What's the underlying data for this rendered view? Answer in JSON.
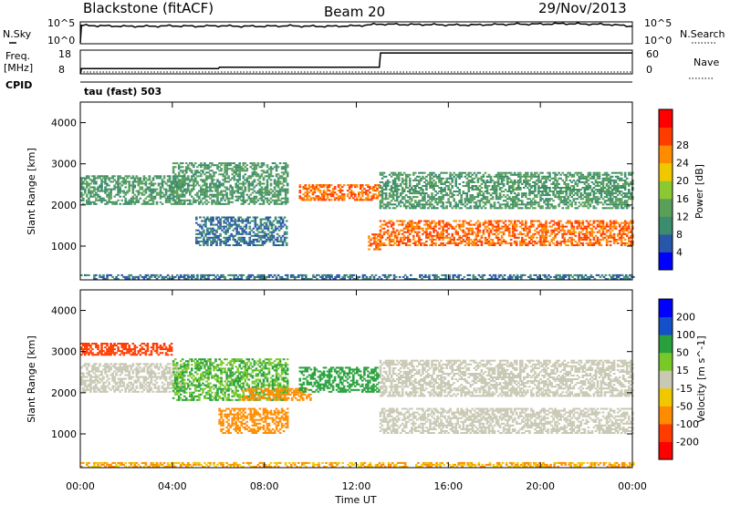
{
  "header": {
    "station": "Blackstone (fitACF)",
    "beam": "Beam 20",
    "date": "29/Nov/2013"
  },
  "noise_panel": {
    "left_label": "N.Sky",
    "right_label": "N.Search",
    "left_ticks": [
      "10^5",
      "10^0"
    ],
    "right_ticks": [
      "10^5",
      "10^0"
    ]
  },
  "freq_panel": {
    "left_label_top": "Freq.",
    "left_label_units": "[MHz]",
    "cpid_label": "CPID",
    "right_label": "Nave",
    "left_ticks": [
      "18",
      "8"
    ],
    "right_ticks": [
      "60",
      "0"
    ]
  },
  "mode_label": "tau (fast) 503",
  "x_axis": {
    "label": "Time UT",
    "ticks": [
      "00:00",
      "04:00",
      "08:00",
      "12:00",
      "16:00",
      "20:00",
      "00:00"
    ]
  },
  "colors": {
    "power_scale": [
      "#0000ff",
      "#2856a8",
      "#3c8c6e",
      "#5aa05a",
      "#8cc832",
      "#f0c800",
      "#ff8c00",
      "#ff3c00",
      "#ff0000"
    ],
    "velocity_scale": [
      "#0000ff",
      "#1450c8",
      "#28a03c",
      "#78c828",
      "#c8c8b4",
      "#f0c800",
      "#ff8c00",
      "#ff3c00",
      "#ff0000"
    ]
  },
  "chart_data": [
    {
      "type": "line",
      "title": "N.Sky / N.Search",
      "x": [
        0,
        1,
        2,
        3,
        4,
        5,
        6,
        7,
        8,
        9,
        10,
        11,
        12,
        13,
        14,
        15,
        16,
        17,
        18,
        19,
        20,
        21,
        22,
        23,
        24
      ],
      "series": [
        {
          "name": "N.Sky",
          "values": [
            4.2,
            4.1,
            4.0,
            4.0,
            4.1,
            4.0,
            4.1,
            4.0,
            4.0,
            4.1,
            4.0,
            4.0,
            4.1,
            4.5,
            4.4,
            4.4,
            4.3,
            4.3,
            4.4,
            4.5,
            4.5,
            4.6,
            4.5,
            4.4,
            4.0
          ]
        }
      ],
      "ylim": [
        0,
        5
      ],
      "xlim": [
        0,
        24
      ]
    },
    {
      "type": "line",
      "title": "Freq. / Nave",
      "x": [
        0,
        0.05,
        6,
        6.05,
        13,
        13.05,
        24
      ],
      "series": [
        {
          "name": "Freq.",
          "values": [
            8,
            10.2,
            10.2,
            10.8,
            10.8,
            16.8,
            16.8
          ]
        },
        {
          "name": "Nave",
          "values": [
            0,
            0,
            0,
            0,
            0,
            0,
            0
          ]
        }
      ],
      "ylim": [
        8,
        18
      ],
      "xlim": [
        0,
        24
      ]
    },
    {
      "type": "heatmap",
      "title": "Power",
      "xlabel": "Time UT",
      "ylabel": "Slant Range [km]",
      "xlim": [
        0,
        24
      ],
      "ylim": [
        180,
        4500
      ],
      "y_ticks": [
        1000,
        2000,
        3000,
        4000
      ],
      "colorbar_label": "Power [dB]",
      "colorbar_ticks": [
        4,
        8,
        12,
        16,
        20,
        24,
        28
      ],
      "colorbar_range": [
        0,
        32
      ],
      "features": [
        {
          "t_start": 0,
          "t_end": 4.5,
          "range_start": 2000,
          "range_end": 2700,
          "value": 12
        },
        {
          "t_start": 4,
          "t_end": 9,
          "range_start": 2000,
          "range_end": 3000,
          "value": 12
        },
        {
          "t_start": 5,
          "t_end": 9,
          "range_start": 1000,
          "range_end": 1700,
          "value": 8
        },
        {
          "t_start": 9.5,
          "t_end": 13,
          "range_start": 2100,
          "range_end": 2500,
          "value": 28
        },
        {
          "t_start": 12.5,
          "t_end": 13,
          "range_start": 900,
          "range_end": 1300,
          "value": 28
        },
        {
          "t_start": 13,
          "t_end": 24,
          "range_start": 1000,
          "range_end": 1600,
          "value": 28
        },
        {
          "t_start": 13,
          "t_end": 24,
          "range_start": 1900,
          "range_end": 2800,
          "value": 12
        },
        {
          "t_start": 0,
          "t_end": 24,
          "range_start": 180,
          "range_end": 300,
          "value": 8
        }
      ]
    },
    {
      "type": "heatmap",
      "title": "Velocity",
      "xlabel": "Time UT",
      "ylabel": "Slant Range [km]",
      "xlim": [
        0,
        24
      ],
      "ylim": [
        180,
        4500
      ],
      "y_ticks": [
        1000,
        2000,
        3000,
        4000
      ],
      "colorbar_label": "Velocity [m s^-1]",
      "colorbar_ticks": [
        200,
        100,
        50,
        15,
        -15,
        -50,
        -100,
        -200
      ],
      "features": [
        {
          "t_start": 0,
          "t_end": 4.5,
          "range_start": 2000,
          "range_end": 2700,
          "value": 0
        },
        {
          "t_start": 4,
          "t_end": 9,
          "range_start": 1800,
          "range_end": 2800,
          "value": 50
        },
        {
          "t_start": 6,
          "t_end": 9,
          "range_start": 1000,
          "range_end": 1600,
          "value": -80
        },
        {
          "t_start": 7,
          "t_end": 10,
          "range_start": 1800,
          "range_end": 2100,
          "value": -80
        },
        {
          "t_start": 9.5,
          "t_end": 13,
          "range_start": 2000,
          "range_end": 2600,
          "value": 60
        },
        {
          "t_start": 13,
          "t_end": 24,
          "range_start": 1000,
          "range_end": 1600,
          "value": 0
        },
        {
          "t_start": 13,
          "t_end": 24,
          "range_start": 1900,
          "range_end": 2800,
          "value": 0
        },
        {
          "t_start": 0,
          "t_end": 4,
          "range_start": 2900,
          "range_end": 3200,
          "value": -150
        },
        {
          "t_start": 0,
          "t_end": 24,
          "range_start": 180,
          "range_end": 300,
          "value": -50
        }
      ]
    }
  ]
}
